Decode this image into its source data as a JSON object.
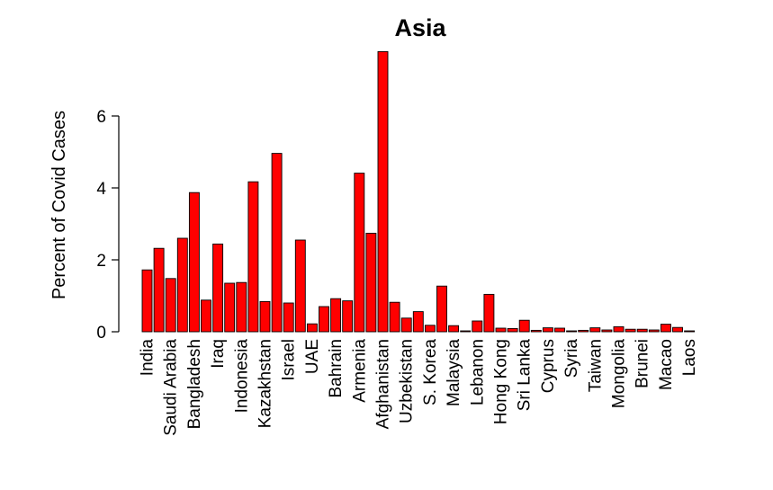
{
  "chart_data": {
    "type": "bar",
    "title": "Asia",
    "xlabel": "",
    "ylabel": "Percent of Covid Cases",
    "ylim": [
      0,
      7.8
    ],
    "yticks": [
      0,
      2,
      4,
      6
    ],
    "bar_color": "#ff0000",
    "bar_outline": "#000000",
    "categories": [
      "India",
      "",
      "Saudi Arabia",
      "",
      "Bangladesh",
      "",
      "Iraq",
      "",
      "Indonesia",
      "",
      "Kazakhstan",
      "",
      "Israel",
      "",
      "UAE",
      "",
      "Bahrain",
      "",
      "Armenia",
      "",
      "Afghanistan",
      "",
      "Uzbekistan",
      "",
      "S. Korea",
      "",
      "Malaysia",
      "",
      "Lebanon",
      "",
      "Hong Kong",
      "",
      "Sri Lanka",
      "",
      "Cyprus",
      "",
      "Syria",
      "",
      "Taiwan",
      "",
      "Mongolia",
      "",
      "Brunei",
      "",
      "Macao",
      "",
      "Laos"
    ],
    "values": [
      1.72,
      2.32,
      1.48,
      2.6,
      3.87,
      0.88,
      2.44,
      1.35,
      1.37,
      4.17,
      0.84,
      4.96,
      0.8,
      2.55,
      0.22,
      0.7,
      0.92,
      0.86,
      4.41,
      2.74,
      7.79,
      0.82,
      0.38,
      0.56,
      0.18,
      1.27,
      0.17,
      0.0,
      0.3,
      1.04,
      0.1,
      0.09,
      0.32,
      0.04,
      0.11,
      0.1,
      0.0,
      0.04,
      0.11,
      0.05,
      0.14,
      0.07,
      0.07,
      0.05,
      0.21,
      0.12,
      0.02
    ]
  }
}
